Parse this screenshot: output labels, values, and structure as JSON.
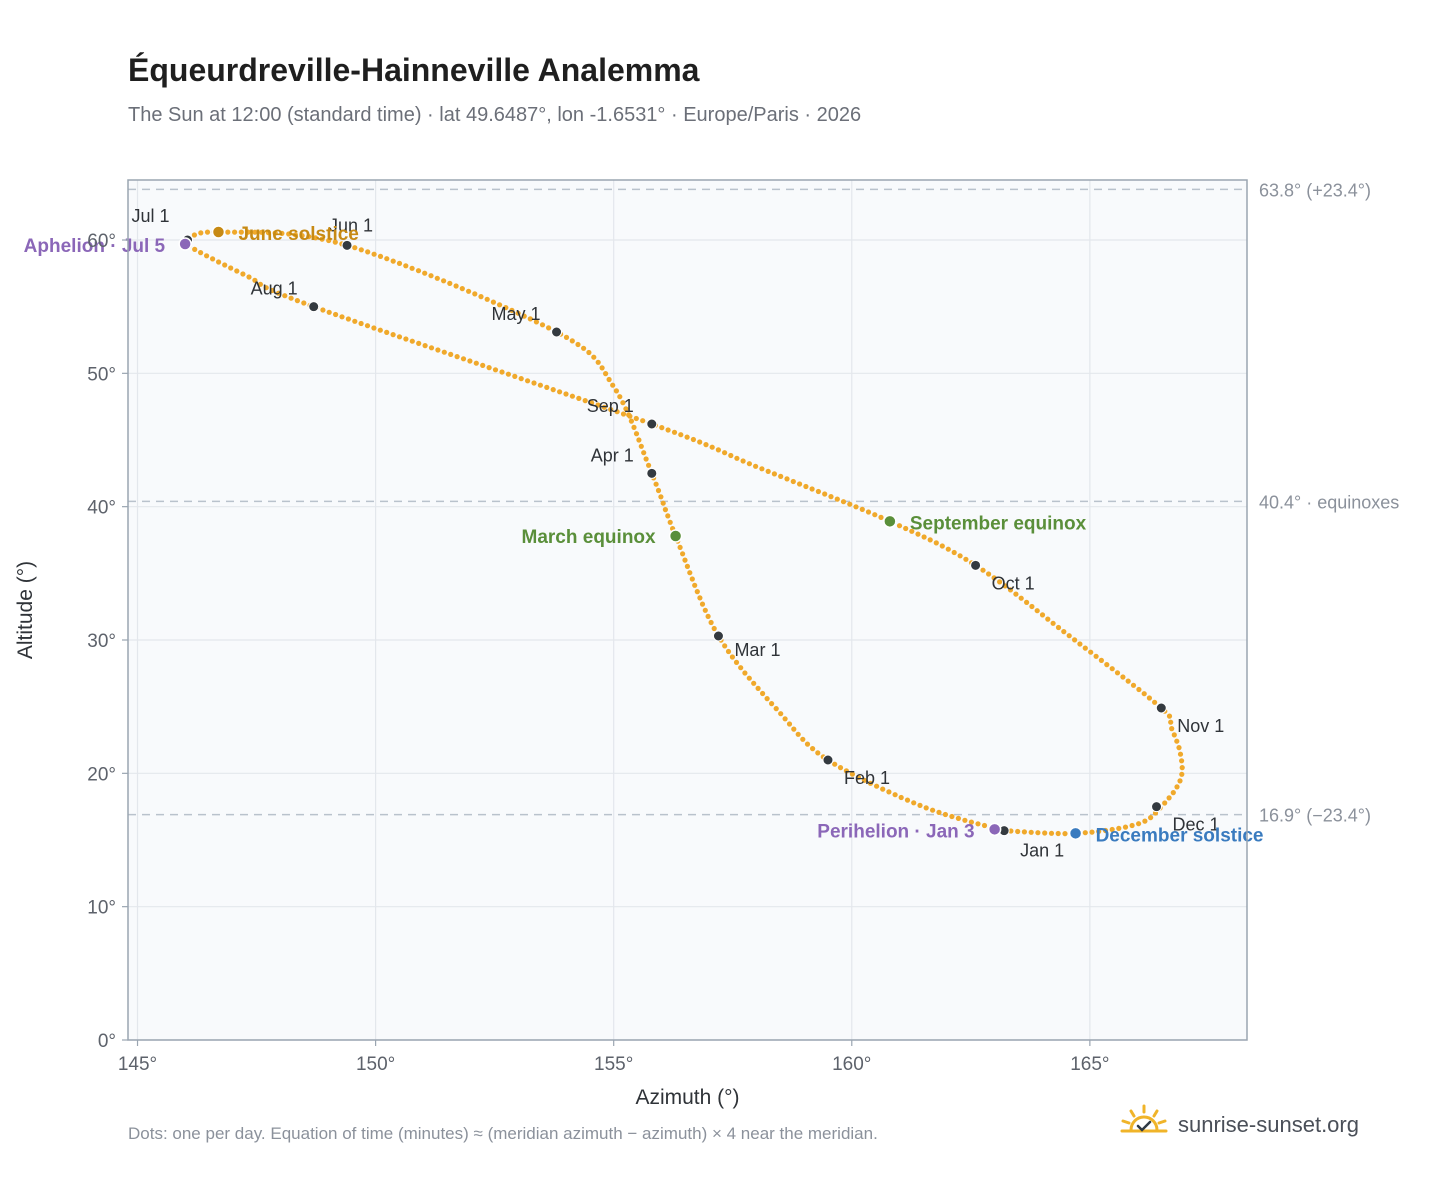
{
  "header": {
    "title": "Équeurdreville-Hainneville Analemma",
    "subtitle": "The Sun at 12:00 (standard time) · lat 49.6487°, lon -1.6531° · Europe/Paris · 2026"
  },
  "footer": {
    "note": "Dots: one per day. Equation of time (minutes) ≈ (meridian azimuth − azimuth) × 4 near the meridian.",
    "brand": "sunrise-sunset.org"
  },
  "colors": {
    "path": "#f0a92b",
    "month_dot": "#343a40",
    "equinox": "#5a8f3a",
    "june_solstice": "#c78a14",
    "december_solstice": "#3a7bbf",
    "apsis": "#8b67b8",
    "plot_bg": "#f8fafc",
    "grid": "#e3e7ec",
    "axis": "#9aa5b1"
  },
  "chart_data": {
    "type": "scatter",
    "xlabel": "Azimuth (°)",
    "ylabel": "Altitude (°)",
    "xlim": [
      144.8,
      168.3
    ],
    "ylim": [
      0,
      64.5
    ],
    "x_ticks": [
      145,
      150,
      155,
      160,
      165
    ],
    "x_tick_labels": [
      "145°",
      "150°",
      "155°",
      "160°",
      "165°"
    ],
    "y_ticks": [
      0,
      10,
      20,
      30,
      40,
      50,
      60
    ],
    "y_tick_labels": [
      "0°",
      "10°",
      "20°",
      "30°",
      "40°",
      "50°",
      "60°"
    ],
    "grid": true,
    "reference_lines": [
      {
        "y": 63.8,
        "label": "63.8° (+23.4°)"
      },
      {
        "y": 40.4,
        "label": "40.4° · equinoxes"
      },
      {
        "y": 16.9,
        "label": "16.9° (−23.4°)"
      }
    ],
    "path_control_points": [
      [
        163.2,
        15.7
      ],
      [
        164.7,
        15.5
      ],
      [
        166.0,
        16.2
      ],
      [
        166.5,
        17.5
      ],
      [
        166.9,
        19.5
      ],
      [
        166.9,
        21.5
      ],
      [
        166.7,
        23.5
      ],
      [
        166.5,
        24.9
      ],
      [
        164.5,
        30.5
      ],
      [
        162.6,
        35.6
      ],
      [
        160.8,
        38.9
      ],
      [
        158.0,
        43.0
      ],
      [
        155.8,
        46.2
      ],
      [
        148.7,
        55.0
      ],
      [
        147.3,
        57.3
      ],
      [
        146.1,
        59.5
      ],
      [
        146.05,
        60.0
      ],
      [
        146.7,
        60.6
      ],
      [
        149.4,
        59.6
      ],
      [
        153.8,
        53.1
      ],
      [
        155.0,
        49.0
      ],
      [
        155.8,
        42.5
      ],
      [
        156.3,
        37.8
      ],
      [
        157.2,
        30.3
      ],
      [
        158.5,
        24.5
      ],
      [
        159.5,
        21.0
      ],
      [
        161.5,
        17.5
      ],
      [
        163.2,
        15.7
      ]
    ],
    "month_markers": [
      {
        "label": "Jan 1",
        "x": 163.2,
        "y": 15.7
      },
      {
        "label": "Feb 1",
        "x": 159.5,
        "y": 21.0
      },
      {
        "label": "Mar 1",
        "x": 157.2,
        "y": 30.3
      },
      {
        "label": "Apr 1",
        "x": 155.8,
        "y": 42.5
      },
      {
        "label": "May 1",
        "x": 153.8,
        "y": 53.1
      },
      {
        "label": "Jun 1",
        "x": 149.4,
        "y": 59.6
      },
      {
        "label": "Jul 1",
        "x": 146.05,
        "y": 60.0
      },
      {
        "label": "Aug 1",
        "x": 148.7,
        "y": 55.0
      },
      {
        "label": "Sep 1",
        "x": 155.8,
        "y": 46.2
      },
      {
        "label": "Oct 1",
        "x": 162.6,
        "y": 35.6
      },
      {
        "label": "Nov 1",
        "x": 166.5,
        "y": 24.9
      },
      {
        "label": "Dec 1",
        "x": 166.4,
        "y": 17.5
      }
    ],
    "events": [
      {
        "label": "March equinox",
        "x": 156.3,
        "y": 37.8,
        "color_key": "equinox"
      },
      {
        "label": "June solstice",
        "x": 146.7,
        "y": 60.6,
        "color_key": "june_solstice"
      },
      {
        "label": "September equinox",
        "x": 160.8,
        "y": 38.9,
        "color_key": "equinox"
      },
      {
        "label": "December solstice",
        "x": 164.7,
        "y": 15.5,
        "color_key": "december_solstice"
      },
      {
        "label": "Perihelion · Jan 3",
        "x": 163.0,
        "y": 15.8,
        "color_key": "apsis"
      },
      {
        "label": "Aphelion · Jul 5",
        "x": 146.0,
        "y": 59.7,
        "color_key": "apsis"
      }
    ]
  }
}
